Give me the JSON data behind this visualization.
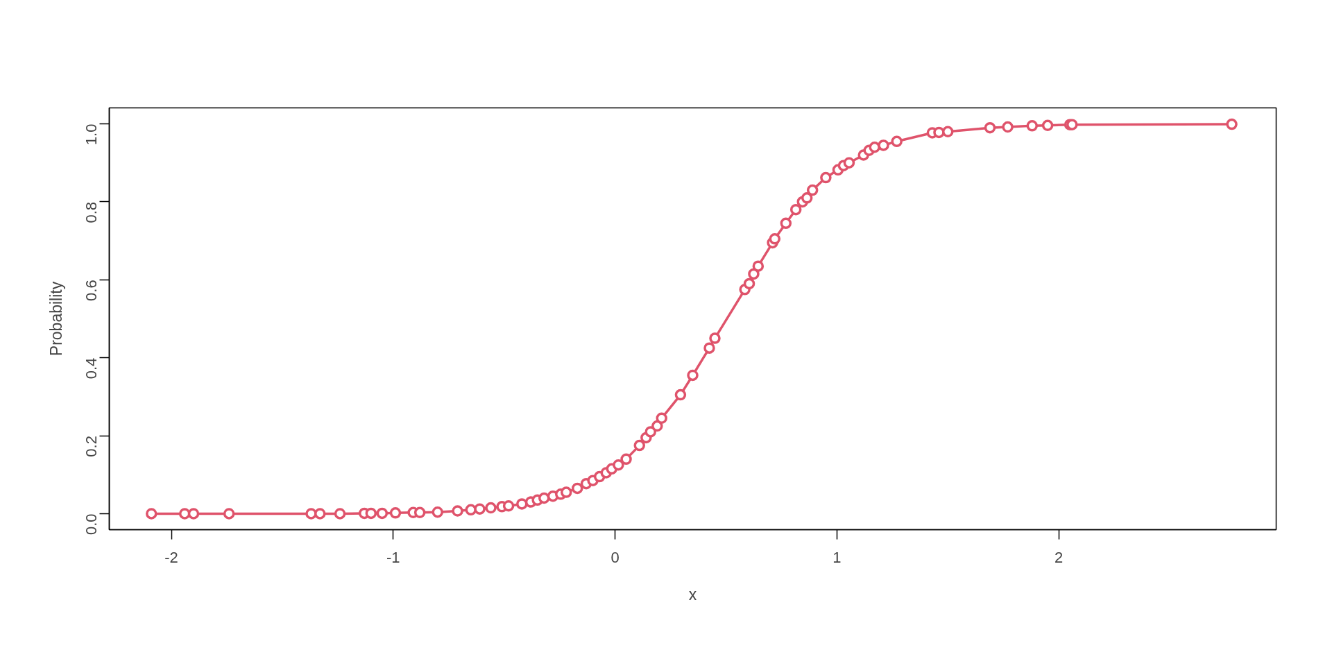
{
  "chart_data": {
    "type": "line",
    "xlabel": "x",
    "ylabel": "Probability",
    "x": [
      -2.09,
      -1.94,
      -1.9,
      -1.74,
      -1.37,
      -1.33,
      -1.24,
      -1.13,
      -1.1,
      -1.05,
      -0.99,
      -0.91,
      -0.88,
      -0.8,
      -0.71,
      -0.65,
      -0.61,
      -0.56,
      -0.51,
      -0.48,
      -0.42,
      -0.38,
      -0.35,
      -0.32,
      -0.28,
      -0.245,
      -0.22,
      -0.17,
      -0.13,
      -0.1,
      -0.07,
      -0.04,
      -0.015,
      0.015,
      0.05,
      0.11,
      0.14,
      0.16,
      0.19,
      0.21,
      0.295,
      0.35,
      0.425,
      0.45,
      0.585,
      0.605,
      0.625,
      0.645,
      0.71,
      0.72,
      0.77,
      0.815,
      0.845,
      0.865,
      0.89,
      0.95,
      1.005,
      1.03,
      1.055,
      1.12,
      1.145,
      1.17,
      1.21,
      1.27,
      1.43,
      1.46,
      1.5,
      1.69,
      1.77,
      1.88,
      1.95,
      2.05,
      2.06,
      2.78
    ],
    "series": [
      {
        "color": "#df536b",
        "values": [
          0,
          0,
          0,
          0,
          0,
          0,
          0,
          0.001,
          0.001,
          0.001,
          0.002,
          0.003,
          0.003,
          0.004,
          0.007,
          0.01,
          0.012,
          0.015,
          0.018,
          0.02,
          0.025,
          0.03,
          0.035,
          0.04,
          0.045,
          0.05,
          0.055,
          0.065,
          0.077,
          0.085,
          0.095,
          0.105,
          0.115,
          0.125,
          0.14,
          0.175,
          0.195,
          0.21,
          0.225,
          0.245,
          0.305,
          0.355,
          0.425,
          0.45,
          0.575,
          0.59,
          0.615,
          0.635,
          0.695,
          0.705,
          0.745,
          0.78,
          0.8,
          0.81,
          0.83,
          0.862,
          0.882,
          0.893,
          0.9,
          0.92,
          0.932,
          0.94,
          0.945,
          0.955,
          0.977,
          0.978,
          0.98,
          0.99,
          0.992,
          0.995,
          0.996,
          0.998,
          0.998,
          0.999
        ]
      }
    ],
    "xlim": [
      -2.28,
      2.98
    ],
    "ylim": [
      -0.041,
      1.041
    ],
    "xticks": [
      -2,
      -1,
      0,
      1,
      2
    ],
    "yticks": [
      {
        "value": 0,
        "label": "0.0"
      },
      0.2,
      0.4,
      0.6,
      0.8,
      {
        "value": 1,
        "label": "1.0"
      }
    ],
    "grid": false,
    "marker": "circle",
    "line_style": "solid"
  }
}
